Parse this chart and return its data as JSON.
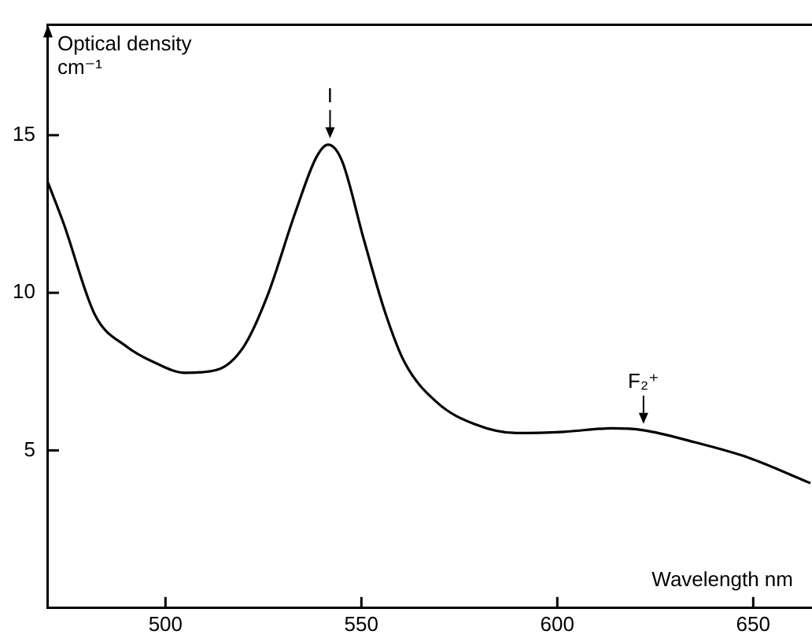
{
  "chart_data": {
    "type": "line",
    "xlabel": "Wavelength nm",
    "ylabel": "Optical density cm⁻¹",
    "x": [
      470,
      474,
      482,
      490,
      497,
      505,
      513,
      520,
      526,
      533,
      538.5,
      541.5,
      545,
      550.6,
      556,
      561,
      569.5,
      579,
      589.6,
      601.7,
      613.8,
      622,
      635,
      648.8,
      664.6
    ],
    "series": [
      {
        "color": "#000000",
        "values": [
          13.5,
          12.2,
          9.3,
          8.3,
          7.8,
          7.46,
          7.55,
          8.3,
          9.9,
          12.5,
          14.3,
          14.7,
          14.2,
          11.7,
          9.4,
          7.8,
          6.5,
          5.83,
          5.55,
          5.59,
          5.7,
          5.64,
          5.26,
          4.77,
          3.96
        ]
      }
    ],
    "xlim": [
      470,
      665
    ],
    "ylim": [
      0,
      18.5
    ],
    "xticks": [
      500,
      550,
      600,
      650
    ],
    "yticks": [
      5,
      10,
      15
    ],
    "annotations": [
      {
        "text": "I",
        "x": 542,
        "y": 14.7
      },
      {
        "text": "F₂⁺",
        "x": 622,
        "y": 5.64
      }
    ],
    "grid": false,
    "legend": false,
    "marker": "none",
    "line_style": "solid"
  }
}
